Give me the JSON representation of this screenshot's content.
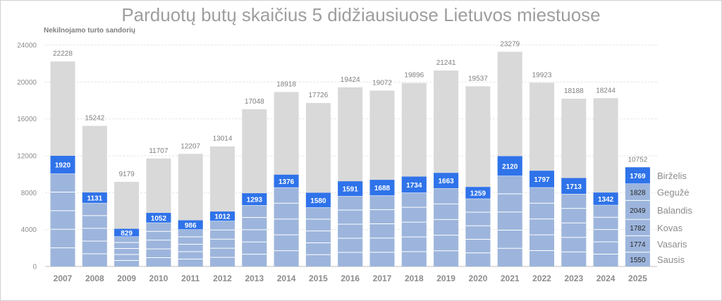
{
  "chart_data": {
    "type": "bar",
    "title": "Parduotų butų skaičius 5 didžiausiuose Lietuvos miestuose",
    "subtitle": "Nekilnojamo turto sandorių",
    "categories": [
      "2007",
      "2008",
      "2009",
      "2010",
      "2011",
      "2012",
      "2013",
      "2014",
      "2015",
      "2016",
      "2017",
      "2018",
      "2019",
      "2020",
      "2021",
      "2022",
      "2023",
      "2024",
      "2025"
    ],
    "totals": [
      22228,
      15242,
      9179,
      11707,
      12207,
      13014,
      17048,
      18918,
      17726,
      19424,
      19072,
      19896,
      21241,
      19537,
      23279,
      19923,
      18188,
      18244,
      10752
    ],
    "june_values": [
      1920,
      1131,
      829,
      1052,
      986,
      1012,
      1293,
      1376,
      1580,
      1591,
      1688,
      1734,
      1663,
      1259,
      2120,
      1797,
      1713,
      1342,
      1769
    ],
    "first_half_totals": [
      11997,
      8021,
      4080,
      5810,
      5004,
      5955,
      7937,
      9948,
      7990,
      9232,
      9391,
      9743,
      10143,
      8618,
      11959,
      10377,
      9586,
      8010,
      10752
    ],
    "months_2025": [
      {
        "name": "Sausis",
        "value": 1550
      },
      {
        "name": "Vasaris",
        "value": 1774
      },
      {
        "name": "Kovas",
        "value": 1782
      },
      {
        "name": "Balandis",
        "value": 2049
      },
      {
        "name": "Gegužė",
        "value": 1828
      },
      {
        "name": "Birželis",
        "value": 1769
      }
    ],
    "ylim": [
      0,
      24000
    ],
    "yticks": [
      0,
      4000,
      8000,
      12000,
      16000,
      20000,
      24000
    ],
    "grid": true,
    "colors": {
      "total_bar": "#d9d9d9",
      "first_half_bar": "#9db5dc",
      "june_bar": "#2f73ea",
      "month_bar_2025": "#9db5dc",
      "label_text": "#7f7f7f",
      "june_label_text": "#ffffff"
    }
  }
}
